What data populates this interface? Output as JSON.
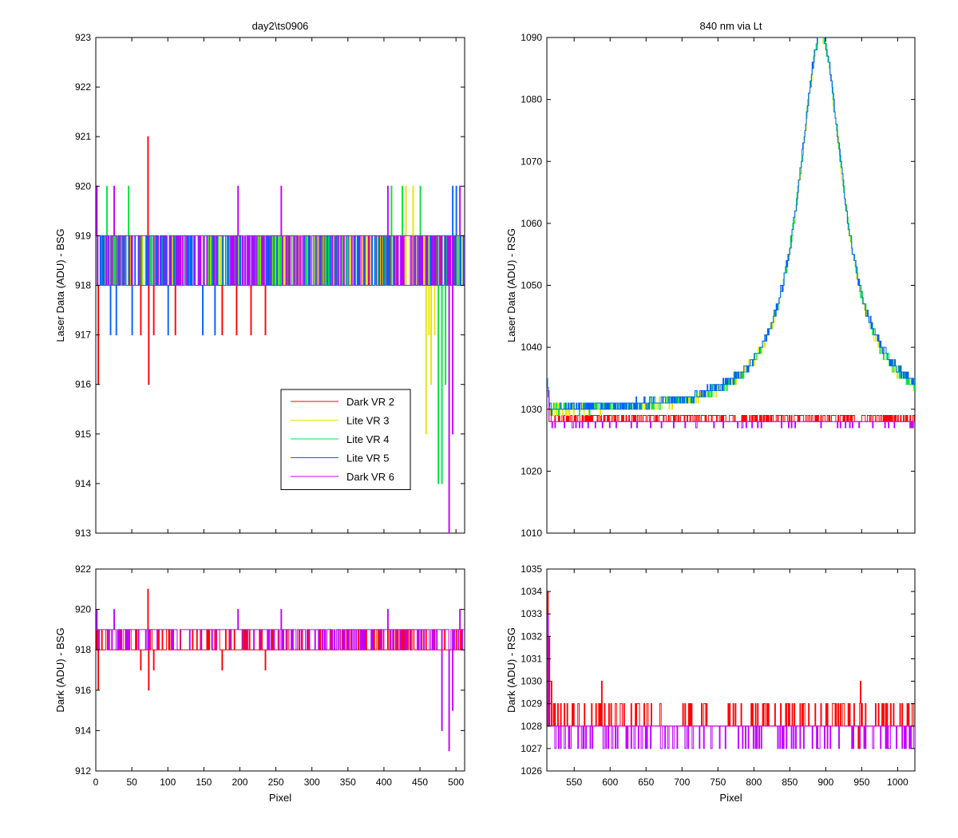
{
  "chart_data": [
    {
      "id": "top-left",
      "type": "line",
      "title": "day2\\ts0906",
      "xlabel": "",
      "ylabel": "Laser Data (ADU) - BSG",
      "xlim": [
        0,
        512
      ],
      "ylim": [
        913,
        923
      ],
      "xticks": [
        0,
        50,
        100,
        150,
        200,
        250,
        300,
        350,
        400,
        450,
        500
      ],
      "yticks": [
        913,
        914,
        915,
        916,
        917,
        918,
        919,
        920,
        921,
        922,
        923
      ],
      "show_xticklabels": false,
      "legend": {
        "placement": "lower-right"
      },
      "series": [
        {
          "name": "Dark VR 2",
          "color": "#ff0000",
          "base": 918,
          "levels": [
            918,
            919
          ],
          "spikes": [
            [
              3,
              916
            ],
            [
              62,
              917
            ],
            [
              72,
              921
            ],
            [
              73,
              916
            ],
            [
              80,
              917
            ],
            [
              110,
              917
            ],
            [
              175,
              917
            ],
            [
              195,
              917
            ],
            [
              215,
              917
            ],
            [
              235,
              917
            ]
          ]
        },
        {
          "name": "Lite VR 3",
          "color": "#e6e600",
          "base": 918,
          "levels": [
            918,
            919
          ],
          "spikes": [
            [
              410,
              920
            ],
            [
              430,
              920
            ],
            [
              440,
              920
            ],
            [
              458,
              915
            ],
            [
              462,
              917
            ],
            [
              465,
              916
            ],
            [
              470,
              917
            ]
          ]
        },
        {
          "name": "Lite VR 4",
          "color": "#00e640",
          "base": 918,
          "levels": [
            918,
            919
          ],
          "spikes": [
            [
              15,
              920
            ],
            [
              45,
              920
            ],
            [
              410,
              920
            ],
            [
              425,
              920
            ],
            [
              450,
              920
            ],
            [
              475,
              914
            ],
            [
              480,
              914
            ],
            [
              485,
              916
            ]
          ]
        },
        {
          "name": "Lite VR 5",
          "color": "#0060ff",
          "base": 918,
          "levels": [
            918,
            919
          ],
          "spikes": [
            [
              20,
              917
            ],
            [
              28,
              917
            ],
            [
              50,
              917
            ],
            [
              100,
              917
            ],
            [
              148,
              917
            ],
            [
              165,
              917
            ],
            [
              495,
              920
            ],
            [
              500,
              920
            ]
          ]
        },
        {
          "name": "Dark VR 6",
          "color": "#c000ff",
          "base": 919,
          "levels": [
            919,
            918
          ],
          "spikes": [
            [
              1,
              920
            ],
            [
              25,
              920
            ],
            [
              197,
              920
            ],
            [
              257,
              920
            ],
            [
              405,
              920
            ],
            [
              490,
              913
            ],
            [
              495,
              915
            ],
            [
              505,
              920
            ]
          ]
        }
      ]
    },
    {
      "id": "top-right",
      "type": "line",
      "title": "840 nm via Lt",
      "xlabel": "",
      "ylabel": "Laser Data (ADU) - RSG",
      "xlim": [
        512,
        1024
      ],
      "ylim": [
        1010,
        1090
      ],
      "xticks": [
        550,
        600,
        650,
        700,
        750,
        800,
        850,
        900,
        950,
        1000
      ],
      "yticks": [
        1010,
        1020,
        1030,
        1040,
        1050,
        1060,
        1070,
        1080,
        1090
      ],
      "show_xticklabels": false,
      "peak": {
        "center": 893,
        "height": 1090,
        "baseline": 1029,
        "width": 40
      },
      "series": [
        {
          "name": "Dark VR 2",
          "color": "#ff0000",
          "kind": "flat",
          "base": 1028.5
        },
        {
          "name": "Lite VR 3",
          "color": "#e6e600",
          "kind": "peak"
        },
        {
          "name": "Lite VR 4",
          "color": "#00e640",
          "kind": "peak"
        },
        {
          "name": "Lite VR 5",
          "color": "#0060ff",
          "kind": "peak"
        },
        {
          "name": "Dark VR 6",
          "color": "#c000ff",
          "kind": "flat",
          "base": 1028
        }
      ]
    },
    {
      "id": "bottom-left",
      "type": "line",
      "title": "",
      "xlabel": "Pixel",
      "ylabel": "Dark (ADU) - BSG",
      "xlim": [
        0,
        512
      ],
      "ylim": [
        912,
        922
      ],
      "xticks": [
        0,
        50,
        100,
        150,
        200,
        250,
        300,
        350,
        400,
        450,
        500
      ],
      "yticks": [
        912,
        914,
        916,
        918,
        920,
        922
      ],
      "ytick_labels": [
        "912",
        "914",
        "916",
        "918",
        "920",
        "922"
      ],
      "show_xticklabels": true,
      "series": [
        {
          "name": "Dark VR 2",
          "color": "#ff0000",
          "base": 918,
          "levels": [
            918,
            919
          ],
          "spikes": [
            [
              3,
              916
            ],
            [
              62,
              917
            ],
            [
              72,
              921
            ],
            [
              73,
              916
            ],
            [
              80,
              917
            ],
            [
              175,
              917
            ],
            [
              235,
              917
            ]
          ]
        },
        {
          "name": "Dark VR 6",
          "color": "#c000ff",
          "base": 919,
          "levels": [
            919,
            918
          ],
          "spikes": [
            [
              1,
              920
            ],
            [
              25,
              920
            ],
            [
              197,
              920
            ],
            [
              257,
              920
            ],
            [
              405,
              920
            ],
            [
              480,
              914
            ],
            [
              490,
              913
            ],
            [
              495,
              915
            ],
            [
              505,
              920
            ]
          ]
        }
      ]
    },
    {
      "id": "bottom-right",
      "type": "line",
      "title": "",
      "xlabel": "Pixel",
      "ylabel": "Dark (ADU) - RSG",
      "xlim": [
        512,
        1024
      ],
      "ylim": [
        1026,
        1035
      ],
      "xticks": [
        550,
        600,
        650,
        700,
        750,
        800,
        850,
        900,
        950,
        1000
      ],
      "yticks": [
        1026,
        1027,
        1028,
        1029,
        1030,
        1031,
        1032,
        1033,
        1034,
        1035
      ],
      "show_xticklabels": true,
      "series": [
        {
          "name": "Dark VR 2",
          "color": "#ff0000",
          "base": 1028,
          "levels": [
            1028,
            1029
          ],
          "spikes": [
            [
              513,
              1034
            ],
            [
              515,
              1032
            ],
            [
              518,
              1030
            ],
            [
              588,
              1030
            ],
            [
              948,
              1030
            ],
            [
              945,
              1027
            ]
          ]
        },
        {
          "name": "Dark VR 6",
          "color": "#c000ff",
          "base": 1028,
          "levels": [
            1028,
            1027
          ],
          "spikes": [
            [
              513,
              1033
            ]
          ]
        }
      ]
    }
  ]
}
